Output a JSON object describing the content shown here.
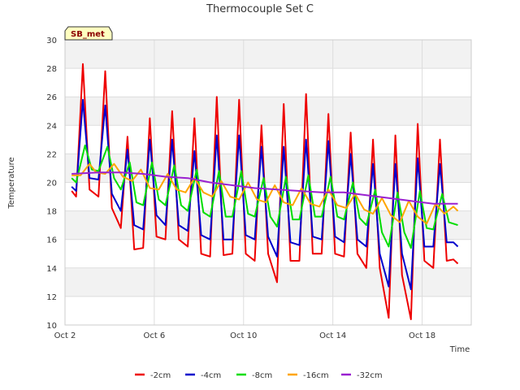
{
  "chart_data": {
    "type": "line",
    "title": "Thermocouple Set C",
    "xlabel": "Time",
    "ylabel": "Temperature",
    "badge": "SB_met",
    "x_tick_labels": [
      "Oct 2",
      "Oct 6",
      "Oct 10",
      "Oct 14",
      "Oct 18"
    ],
    "x_tick_days": [
      2,
      6,
      10,
      14,
      18
    ],
    "x_range_days": [
      2,
      20.2
    ],
    "ylim": [
      10,
      30
    ],
    "y_ticks": [
      10,
      12,
      14,
      16,
      18,
      20,
      22,
      24,
      26,
      28,
      30
    ],
    "grid": true,
    "legend_position": "bottom",
    "colors": {
      "s1": "#ee0000",
      "s2": "#0000cc",
      "s3": "#00dd00",
      "s4": "#ffa500",
      "s5": "#9a20d0",
      "band": "#f2f2f2",
      "grid": "#dddddd",
      "badge_fill": "#ffffc0"
    },
    "series": [
      {
        "name": "-2cm",
        "color": "#ee0000",
        "x_days": [
          2.3,
          2.5,
          2.8,
          3.1,
          3.5,
          3.8,
          4.1,
          4.5,
          4.8,
          5.1,
          5.5,
          5.8,
          6.1,
          6.5,
          6.8,
          7.1,
          7.5,
          7.8,
          8.1,
          8.5,
          8.8,
          9.1,
          9.5,
          9.8,
          10.1,
          10.5,
          10.8,
          11.1,
          11.5,
          11.8,
          12.1,
          12.5,
          12.8,
          13.1,
          13.5,
          13.8,
          14.1,
          14.5,
          14.8,
          15.1,
          15.5,
          15.8,
          16.1,
          16.5,
          16.8,
          17.1,
          17.5,
          17.8,
          18.1,
          18.5,
          18.8,
          19.1,
          19.4,
          19.6
        ],
        "values": [
          19.4,
          19.0,
          28.3,
          19.5,
          19.0,
          27.8,
          18.2,
          16.8,
          23.2,
          15.3,
          15.4,
          24.5,
          16.2,
          16.0,
          25.0,
          16.0,
          15.5,
          24.5,
          15.0,
          14.8,
          26.0,
          14.9,
          15.0,
          25.8,
          15.0,
          14.5,
          24.0,
          15.0,
          13.0,
          25.5,
          14.5,
          14.5,
          26.2,
          15.0,
          15.0,
          24.8,
          15.0,
          14.8,
          23.5,
          15.0,
          14.0,
          23.0,
          14.0,
          10.5,
          23.3,
          13.5,
          10.4,
          24.1,
          14.5,
          14.0,
          23.0,
          14.5,
          14.6,
          14.3
        ]
      },
      {
        "name": "-4cm",
        "color": "#0000cc",
        "x_days": [
          2.3,
          2.5,
          2.8,
          3.1,
          3.5,
          3.8,
          4.1,
          4.5,
          4.8,
          5.1,
          5.5,
          5.8,
          6.1,
          6.5,
          6.8,
          7.1,
          7.5,
          7.8,
          8.1,
          8.5,
          8.8,
          9.1,
          9.5,
          9.8,
          10.1,
          10.5,
          10.8,
          11.1,
          11.5,
          11.8,
          12.1,
          12.5,
          12.8,
          13.1,
          13.5,
          13.8,
          14.1,
          14.5,
          14.8,
          15.1,
          15.5,
          15.8,
          16.1,
          16.5,
          16.8,
          17.1,
          17.5,
          17.8,
          18.1,
          18.5,
          18.8,
          19.1,
          19.4,
          19.6
        ],
        "values": [
          19.7,
          19.4,
          25.8,
          20.3,
          20.2,
          25.4,
          19.2,
          18.0,
          22.3,
          17.0,
          16.7,
          23.0,
          17.7,
          17.0,
          23.0,
          17.0,
          16.6,
          22.2,
          16.3,
          16.0,
          23.3,
          16.0,
          16.0,
          23.3,
          16.3,
          16.0,
          22.5,
          16.2,
          14.8,
          22.5,
          15.8,
          15.6,
          23.0,
          16.2,
          16.0,
          22.9,
          16.2,
          15.8,
          22.0,
          16.0,
          15.5,
          21.3,
          15.0,
          12.7,
          21.3,
          15.0,
          12.5,
          21.7,
          15.5,
          15.5,
          21.3,
          15.8,
          15.8,
          15.5
        ]
      },
      {
        "name": "-8cm",
        "color": "#00dd00",
        "x_days": [
          2.3,
          2.5,
          2.9,
          3.2,
          3.5,
          3.9,
          4.2,
          4.5,
          4.9,
          5.2,
          5.5,
          5.9,
          6.2,
          6.5,
          6.9,
          7.2,
          7.5,
          7.9,
          8.2,
          8.5,
          8.9,
          9.2,
          9.5,
          9.9,
          10.2,
          10.5,
          10.9,
          11.2,
          11.5,
          11.9,
          12.2,
          12.5,
          12.9,
          13.2,
          13.5,
          13.9,
          14.2,
          14.5,
          14.9,
          15.2,
          15.5,
          15.9,
          16.2,
          16.5,
          16.9,
          17.2,
          17.5,
          17.9,
          18.2,
          18.5,
          18.9,
          19.2,
          19.6
        ],
        "values": [
          20.3,
          20.0,
          22.6,
          20.9,
          20.8,
          22.5,
          20.3,
          19.5,
          21.4,
          18.6,
          18.4,
          21.4,
          18.8,
          18.4,
          21.2,
          18.4,
          18.0,
          20.9,
          17.9,
          17.6,
          20.8,
          17.6,
          17.6,
          20.8,
          17.8,
          17.6,
          20.3,
          17.6,
          16.9,
          20.4,
          17.4,
          17.4,
          20.5,
          17.6,
          17.6,
          20.4,
          17.6,
          17.4,
          20.0,
          17.5,
          17.0,
          19.5,
          16.5,
          15.5,
          19.3,
          16.5,
          15.4,
          19.4,
          16.8,
          16.7,
          19.2,
          17.2,
          17.0
        ]
      },
      {
        "name": "-16cm",
        "color": "#ffa500",
        "x_days": [
          2.3,
          2.7,
          3.1,
          3.4,
          3.8,
          4.2,
          4.6,
          5.0,
          5.4,
          5.8,
          6.2,
          6.6,
          7.0,
          7.4,
          7.8,
          8.2,
          8.6,
          9.0,
          9.4,
          9.8,
          10.2,
          10.6,
          11.0,
          11.4,
          11.8,
          12.2,
          12.6,
          13.0,
          13.4,
          13.8,
          14.2,
          14.6,
          15.0,
          15.4,
          15.8,
          16.2,
          16.6,
          17.0,
          17.4,
          17.8,
          18.2,
          18.6,
          19.0,
          19.4,
          19.6
        ],
        "values": [
          20.5,
          20.5,
          21.3,
          20.7,
          20.6,
          21.3,
          20.4,
          20.1,
          20.9,
          19.6,
          19.5,
          20.6,
          19.5,
          19.3,
          20.3,
          19.3,
          19.0,
          20.1,
          19.0,
          18.8,
          20.0,
          18.8,
          18.6,
          19.8,
          18.6,
          18.4,
          19.6,
          18.5,
          18.3,
          19.5,
          18.4,
          18.2,
          19.2,
          18.1,
          17.8,
          18.9,
          17.7,
          17.2,
          18.7,
          17.6,
          17.1,
          18.5,
          17.8,
          18.3,
          18.0
        ]
      },
      {
        "name": "-32cm",
        "color": "#9a20d0",
        "x_days": [
          2.3,
          3.5,
          4.5,
          5.5,
          6.5,
          7.5,
          8.5,
          9.5,
          10.5,
          11.5,
          12.5,
          13.5,
          14.5,
          15.5,
          16.5,
          17.5,
          18.5,
          19.6
        ],
        "values": [
          20.6,
          20.7,
          20.7,
          20.6,
          20.4,
          20.3,
          20.0,
          19.8,
          19.6,
          19.5,
          19.4,
          19.3,
          19.3,
          19.1,
          18.9,
          18.7,
          18.5,
          18.5
        ]
      }
    ]
  }
}
